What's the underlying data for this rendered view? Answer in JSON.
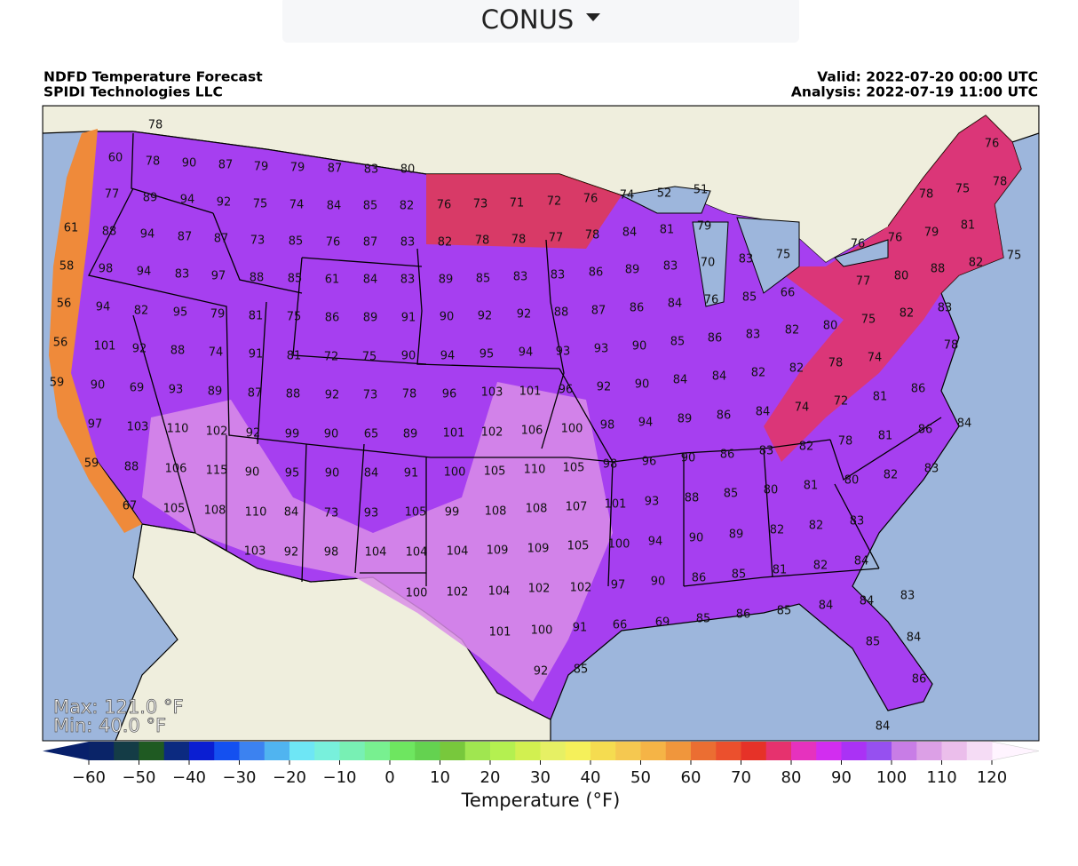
{
  "dropdown": {
    "label": "CONUS"
  },
  "map": {
    "title": "NDFD Temperature Forecast",
    "subtitle": "SPIDI Technologies LLC",
    "valid": "Valid: 2022-07-20 00:00 UTC",
    "analysis": "Analysis: 2022-07-19 11:00 UTC",
    "max": "Max: 121.0 °F",
    "min": "Min: 40.0 °F",
    "station_values": [
      78,
      60,
      78,
      90,
      87,
      79,
      79,
      87,
      83,
      80,
      77,
      89,
      94,
      92,
      75,
      74,
      84,
      85,
      82,
      76,
      73,
      71,
      72,
      76,
      74,
      52,
      51,
      78,
      75,
      76,
      78,
      61,
      88,
      94,
      87,
      87,
      73,
      85,
      76,
      87,
      83,
      82,
      78,
      78,
      77,
      78,
      84,
      81,
      79,
      76,
      76,
      79,
      81,
      58,
      98,
      94,
      83,
      97,
      88,
      85,
      61,
      84,
      83,
      89,
      85,
      83,
      83,
      86,
      89,
      83,
      70,
      83,
      75,
      77,
      80,
      88,
      82,
      75,
      56,
      94,
      82,
      95,
      79,
      81,
      75,
      86,
      89,
      91,
      90,
      92,
      92,
      88,
      87,
      86,
      84,
      76,
      85,
      66,
      80,
      82,
      83,
      56,
      101,
      92,
      88,
      74,
      91,
      81,
      72,
      75,
      90,
      94,
      95,
      94,
      93,
      93,
      90,
      85,
      86,
      83,
      82,
      75,
      78,
      74,
      59,
      90,
      69,
      93,
      89,
      87,
      88,
      92,
      73,
      78,
      96,
      103,
      101,
      96,
      92,
      90,
      84,
      84,
      82,
      82,
      78,
      81,
      86,
      97,
      103,
      110,
      102,
      92,
      99,
      90,
      65,
      89,
      101,
      102,
      106,
      100,
      98,
      94,
      89,
      86,
      84,
      74,
      72,
      78,
      81,
      86,
      84,
      59,
      88,
      106,
      115,
      90,
      95,
      90,
      84,
      91,
      100,
      105,
      110,
      105,
      98,
      96,
      90,
      86,
      83,
      82,
      81,
      80,
      82,
      83,
      67,
      105,
      108,
      110,
      84,
      73,
      93,
      105,
      99,
      108,
      108,
      107,
      101,
      93,
      88,
      85,
      80,
      82,
      82,
      83,
      103,
      92,
      98,
      104,
      104,
      104,
      109,
      109,
      105,
      100,
      94,
      90,
      89,
      82,
      84,
      100,
      102,
      104,
      102,
      102,
      97,
      90,
      86,
      85,
      81,
      83,
      66,
      69,
      85,
      86,
      85,
      84,
      84,
      101,
      100,
      91,
      85,
      84,
      92,
      85,
      86,
      84
    ]
  },
  "colorbar": {
    "label": "Temperature (°F)",
    "lim": [
      -60,
      120
    ],
    "ticks": [
      {
        "value": -60,
        "label": "−60"
      },
      {
        "value": -50,
        "label": "−50"
      },
      {
        "value": -40,
        "label": "−40"
      },
      {
        "value": -30,
        "label": "−30"
      },
      {
        "value": -20,
        "label": "−20"
      },
      {
        "value": -10,
        "label": "−10"
      },
      0,
      10,
      20,
      30,
      40,
      50,
      60,
      70,
      80,
      90,
      100,
      110,
      120
    ],
    "under_color": "#08206b",
    "over_color": "#fff4ff",
    "colors": [
      "#0a2468",
      "#143c46",
      "#1f5a22",
      "#0c2a80",
      "#0a1ed2",
      "#1450f0",
      "#3c82f0",
      "#50b4f0",
      "#6ee6f5",
      "#78f0dc",
      "#78f0b4",
      "#78f090",
      "#6ee660",
      "#64d250",
      "#78c83c",
      "#a0e650",
      "#b4f050",
      "#d2f050",
      "#e6f064",
      "#f5f05a",
      "#f5dc50",
      "#f5c850",
      "#f5b446",
      "#f0963c",
      "#eb6e32",
      "#eb502d",
      "#e63228",
      "#e6326e",
      "#e632be",
      "#d22df0",
      "#aa32f5",
      "#9650f0",
      "#c87de6",
      "#dca0e6",
      "#ebbeeb",
      "#f5dcf5"
    ]
  }
}
